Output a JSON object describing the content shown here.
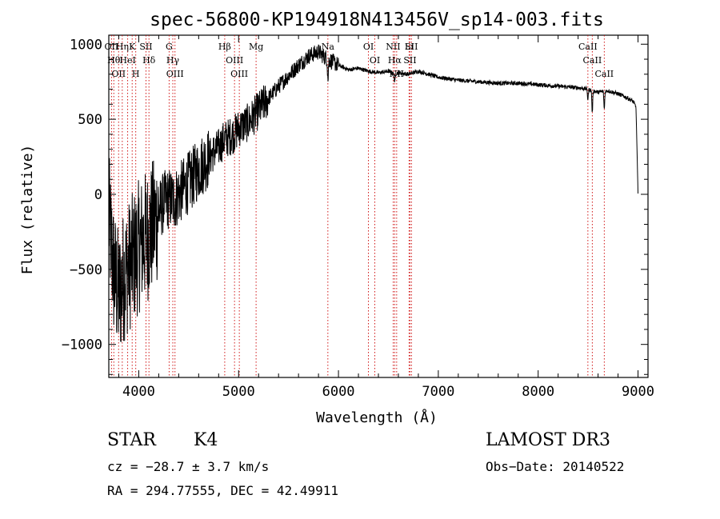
{
  "chart_data": {
    "type": "line",
    "title": "spec-56800-KP194918N413456V_sp14-003.fits",
    "xlabel": "Wavelength (Å)",
    "ylabel": "Flux (relative)",
    "xlim": [
      3700,
      9100
    ],
    "ylim": [
      -1220,
      1060
    ],
    "x_ticks": [
      4000,
      5000,
      6000,
      7000,
      8000,
      9000
    ],
    "y_ticks": [
      -1000,
      -500,
      0,
      500,
      1000
    ],
    "x_tick_labels": [
      "4000",
      "5000",
      "6000",
      "7000",
      "8000",
      "9000"
    ],
    "y_tick_labels": [
      "−1000",
      "−500",
      "0",
      "500",
      "1000"
    ],
    "series": [
      {
        "name": "flux",
        "anchors": [
          [
            3700,
            -150
          ],
          [
            3750,
            -520
          ],
          [
            3800,
            -680
          ],
          [
            3850,
            -540
          ],
          [
            3900,
            -480
          ],
          [
            3950,
            -420
          ],
          [
            4000,
            -350
          ],
          [
            4050,
            -300
          ],
          [
            4100,
            -260
          ],
          [
            4150,
            -200
          ],
          [
            4200,
            -120
          ],
          [
            4250,
            -50
          ],
          [
            4300,
            -30
          ],
          [
            4350,
            -40
          ],
          [
            4400,
            0
          ],
          [
            4450,
            40
          ],
          [
            4500,
            80
          ],
          [
            4550,
            120
          ],
          [
            4600,
            170
          ],
          [
            4650,
            210
          ],
          [
            4700,
            240
          ],
          [
            4750,
            280
          ],
          [
            4800,
            310
          ],
          [
            4850,
            360
          ],
          [
            4900,
            380
          ],
          [
            4950,
            400
          ],
          [
            5000,
            440
          ],
          [
            5050,
            460
          ],
          [
            5100,
            480
          ],
          [
            5150,
            520
          ],
          [
            5200,
            560
          ],
          [
            5300,
            640
          ],
          [
            5400,
            720
          ],
          [
            5500,
            790
          ],
          [
            5600,
            860
          ],
          [
            5700,
            920
          ],
          [
            5800,
            950
          ],
          [
            5850,
            920
          ],
          [
            5900,
            900
          ],
          [
            6000,
            860
          ],
          [
            6100,
            830
          ],
          [
            6200,
            840
          ],
          [
            6300,
            820
          ],
          [
            6400,
            810
          ],
          [
            6500,
            820
          ],
          [
            6560,
            800
          ],
          [
            6600,
            810
          ],
          [
            6700,
            800
          ],
          [
            6800,
            820
          ],
          [
            7000,
            780
          ],
          [
            7200,
            760
          ],
          [
            7400,
            750
          ],
          [
            7600,
            740
          ],
          [
            7800,
            740
          ],
          [
            8000,
            730
          ],
          [
            8200,
            720
          ],
          [
            8400,
            710
          ],
          [
            8500,
            700
          ],
          [
            8600,
            680
          ],
          [
            8700,
            690
          ],
          [
            8800,
            670
          ],
          [
            8900,
            640
          ],
          [
            8950,
            620
          ],
          [
            8980,
            580
          ],
          [
            9000,
            0
          ]
        ],
        "absorption_features": [
          {
            "wavelength": 5895,
            "depth": 140
          },
          {
            "wavelength": 6563,
            "depth": 60
          },
          {
            "wavelength": 8498,
            "depth": 70
          },
          {
            "wavelength": 8542,
            "depth": 150
          },
          {
            "wavelength": 8662,
            "depth": 120
          }
        ]
      }
    ],
    "line_markers": [
      {
        "wavelength": 3727,
        "label": "OII"
      },
      {
        "wavelength": 3750,
        "label": "Hθ"
      },
      {
        "wavelength": 3798,
        "label": "OII"
      },
      {
        "wavelength": 3835,
        "label": "Hη"
      },
      {
        "wavelength": 3889,
        "label": "HeI"
      },
      {
        "wavelength": 3934,
        "label": "K"
      },
      {
        "wavelength": 3970,
        "label": "H"
      },
      {
        "wavelength": 4072,
        "label": "SII"
      },
      {
        "wavelength": 4102,
        "label": "Hδ"
      },
      {
        "wavelength": 4304,
        "label": "G"
      },
      {
        "wavelength": 4341,
        "label": "Hγ"
      },
      {
        "wavelength": 4363,
        "label": "OIII"
      },
      {
        "wavelength": 4861,
        "label": "Hβ"
      },
      {
        "wavelength": 4959,
        "label": "OIII"
      },
      {
        "wavelength": 5007,
        "label": "OIII"
      },
      {
        "wavelength": 5175,
        "label": "Mg"
      },
      {
        "wavelength": 5894,
        "label": "Na"
      },
      {
        "wavelength": 6300,
        "label": "OI"
      },
      {
        "wavelength": 6364,
        "label": "OI"
      },
      {
        "wavelength": 6548,
        "label": "NII"
      },
      {
        "wavelength": 6563,
        "label": "Hα"
      },
      {
        "wavelength": 6583,
        "label": "NII"
      },
      {
        "wavelength": 6707,
        "label": "Li"
      },
      {
        "wavelength": 6716,
        "label": "SII"
      },
      {
        "wavelength": 6731,
        "label": "SII"
      },
      {
        "wavelength": 8498,
        "label": "CaII"
      },
      {
        "wavelength": 8542,
        "label": "CaII"
      },
      {
        "wavelength": 8662,
        "label": "CaII"
      }
    ]
  },
  "info": {
    "object_class": "STAR",
    "subclass": "K4",
    "redshift": "cz = −28.7 ± 3.7 km/s",
    "coordinates": "RA = 294.77555, DEC =  42.49911",
    "survey": "LAMOST DR3",
    "obs_date": "Obs−Date: 20140522"
  },
  "colors": {
    "spectrum": "#000000",
    "marker": "#cc0000",
    "axis": "#000000"
  }
}
